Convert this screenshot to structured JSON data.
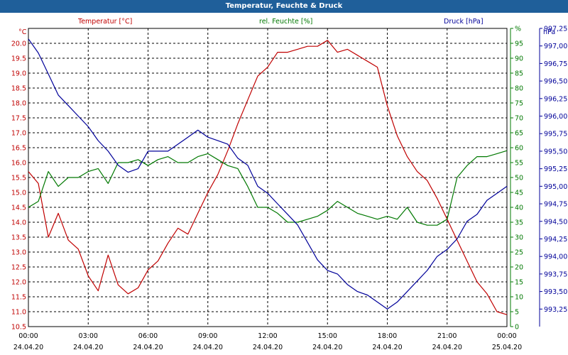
{
  "window": {
    "title": "Temperatur, Feuchte & Druck"
  },
  "colors": {
    "temperature": "#c00000",
    "humidity": "#007800",
    "pressure": "#000099",
    "titlebar": "#1f5f9a"
  },
  "chart_data": {
    "type": "line",
    "title": "Temperatur, Feuchte & Druck",
    "grid": true,
    "x": {
      "range": [
        "24.04.20 00:00",
        "25.04.20 00:00"
      ],
      "ticks": [
        {
          "time": "00:00",
          "date": "24.04.20"
        },
        {
          "time": "03:00",
          "date": "24.04.20"
        },
        {
          "time": "06:00",
          "date": "24.04.20"
        },
        {
          "time": "09:00",
          "date": "24.04.20"
        },
        {
          "time": "12:00",
          "date": "24.04.20"
        },
        {
          "time": "15:00",
          "date": "24.04.20"
        },
        {
          "time": "18:00",
          "date": "24.04.20"
        },
        {
          "time": "21:00",
          "date": "24.04.20"
        },
        {
          "time": "00:00",
          "date": "25.04.20"
        }
      ]
    },
    "axes": {
      "temperature": {
        "unit": "°C",
        "ylim": [
          10.5,
          20.5
        ],
        "ticks": [
          "10.5",
          "11.0",
          "11.5",
          "12.0",
          "12.5",
          "13.0",
          "13.5",
          "14.0",
          "14.5",
          "15.0",
          "15.5",
          "16.0",
          "16.5",
          "17.0",
          "17.5",
          "18.0",
          "18.5",
          "19.0",
          "19.5",
          "20.0"
        ]
      },
      "humidity": {
        "unit": "%",
        "ylim": [
          0,
          100
        ],
        "ticks": [
          "0",
          "5",
          "10",
          "15",
          "20",
          "25",
          "30",
          "35",
          "40",
          "45",
          "50",
          "55",
          "60",
          "65",
          "70",
          "75",
          "80",
          "85",
          "90",
          "95",
          "%"
        ]
      },
      "pressure": {
        "unit": "hPa",
        "ylim": [
          993.0,
          997.25
        ],
        "ticks": [
          "993,25",
          "993,50",
          "993,75",
          "994,00",
          "994,25",
          "994,50",
          "994,75",
          "995,00",
          "995,25",
          "995,50",
          "995,75",
          "996,00",
          "996,25",
          "996,50",
          "996,75",
          "997,00",
          "997,25"
        ]
      }
    },
    "series": [
      {
        "name": "Temperatur [°C]",
        "axis": "temperature",
        "x_hours": [
          0,
          0.5,
          1,
          1.5,
          2,
          2.5,
          3,
          3.5,
          4,
          4.5,
          5,
          5.5,
          6,
          6.5,
          7,
          7.5,
          8,
          8.5,
          9,
          9.5,
          10,
          10.5,
          11,
          11.5,
          12,
          12.5,
          13,
          13.5,
          14,
          14.5,
          15,
          15.5,
          16,
          16.5,
          17,
          17.5,
          18,
          18.5,
          19,
          19.5,
          20,
          20.5,
          21,
          21.5,
          22,
          22.5,
          23,
          23.5,
          24
        ],
        "values": [
          15.7,
          15.3,
          13.5,
          14.3,
          13.4,
          13.1,
          12.2,
          11.7,
          12.9,
          11.9,
          11.6,
          11.8,
          12.4,
          12.7,
          13.3,
          13.8,
          13.6,
          14.3,
          15.0,
          15.6,
          16.4,
          17.3,
          18.1,
          18.9,
          19.2,
          19.7,
          19.7,
          19.8,
          19.9,
          19.9,
          20.1,
          19.7,
          19.8,
          19.6,
          19.4,
          19.2,
          17.9,
          16.9,
          16.2,
          15.7,
          15.4,
          14.8,
          14.1,
          13.4,
          12.7,
          12.0,
          11.6,
          11.0,
          10.9
        ]
      },
      {
        "name": "rel. Feuchte [%]",
        "axis": "humidity",
        "x_hours": [
          0,
          0.5,
          1,
          1.5,
          2,
          2.5,
          3,
          3.5,
          4,
          4.5,
          5,
          5.5,
          6,
          6.5,
          7,
          7.5,
          8,
          8.5,
          9,
          9.5,
          10,
          10.5,
          11,
          11.5,
          12,
          12.5,
          13,
          13.5,
          14,
          14.5,
          15,
          15.5,
          16,
          16.5,
          17,
          17.5,
          18,
          18.5,
          19,
          19.5,
          20,
          20.5,
          21,
          21.5,
          22,
          22.5,
          23,
          23.5,
          24
        ],
        "values": [
          40,
          42,
          52,
          47,
          50,
          50,
          52,
          53,
          48,
          55,
          55,
          56,
          54,
          56,
          57,
          55,
          55,
          57,
          58,
          56,
          54,
          53,
          47,
          40,
          40,
          38,
          35,
          35,
          36,
          37,
          39,
          42,
          40,
          38,
          37,
          36,
          37,
          36,
          40,
          35,
          34,
          34,
          36,
          50,
          54,
          57,
          57,
          58,
          59
        ]
      },
      {
        "name": "Druck [hPa]",
        "axis": "pressure",
        "x_hours": [
          0,
          0.5,
          1,
          1.5,
          2,
          2.5,
          3,
          3.5,
          4,
          4.5,
          5,
          5.5,
          6,
          6.5,
          7,
          7.5,
          8,
          8.5,
          9,
          9.5,
          10,
          10.5,
          11,
          11.5,
          12,
          12.5,
          13,
          13.5,
          14,
          14.5,
          15,
          15.5,
          16,
          16.5,
          17,
          17.5,
          18,
          18.5,
          19,
          19.5,
          20,
          20.5,
          21,
          21.5,
          22,
          22.5,
          23,
          23.5,
          24
        ],
        "values": [
          997.1,
          996.9,
          996.6,
          996.3,
          996.15,
          996.0,
          995.85,
          995.65,
          995.5,
          995.3,
          995.2,
          995.25,
          995.5,
          995.5,
          995.5,
          995.6,
          995.7,
          995.8,
          995.7,
          995.65,
          995.6,
          995.4,
          995.3,
          995.0,
          994.9,
          994.75,
          994.6,
          994.45,
          994.2,
          993.95,
          993.8,
          993.75,
          993.6,
          993.5,
          993.45,
          993.35,
          993.25,
          993.35,
          993.5,
          993.65,
          993.8,
          994.0,
          994.1,
          994.25,
          994.5,
          994.6,
          994.8,
          994.9,
          995.0
        ]
      }
    ]
  }
}
